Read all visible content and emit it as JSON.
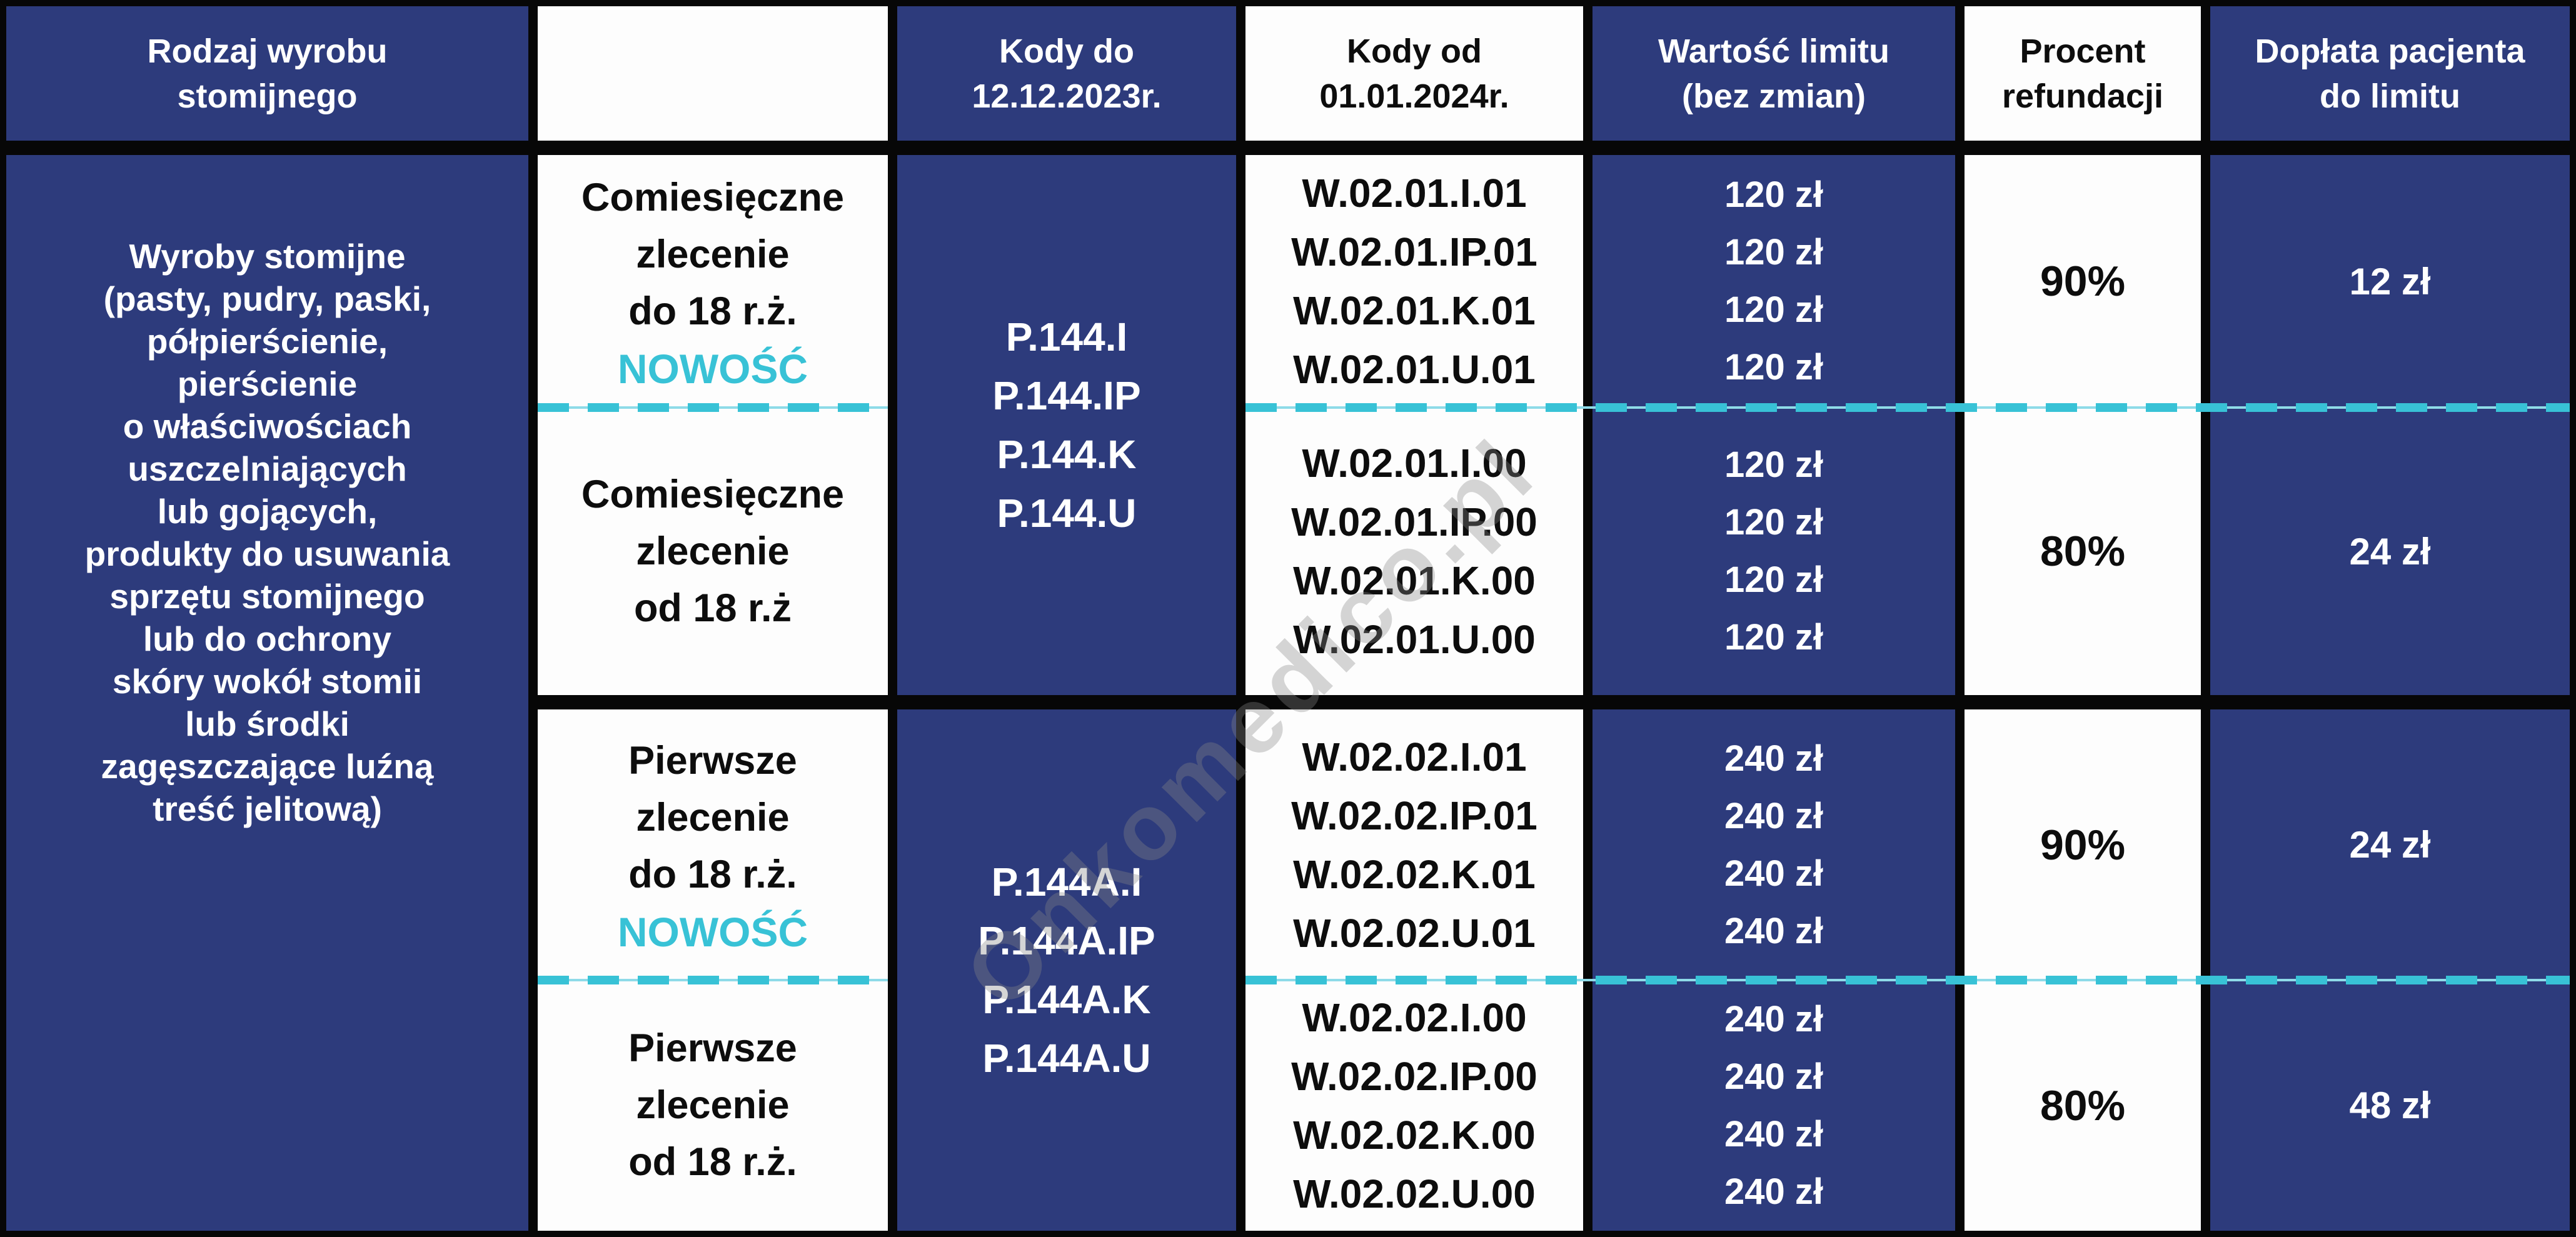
{
  "colors": {
    "navy": "#2d3b7c",
    "accent_cyan": "#38c2d6",
    "border_black": "#070707",
    "cell_white": "#fdfdfd"
  },
  "header": {
    "product_type": "Rodzaj wyrobu\nstomijnego",
    "order_type": "",
    "codes_until": "Kody do\n12.12.2023r.",
    "codes_from": "Kody od\n01.01.2024r.",
    "limit_value": "Wartość limitu\n(bez zmian)",
    "refund_percent": "Procent\nrefundacji",
    "patient_copay": "Dopłata pacjenta\ndo limitu"
  },
  "product_category": "Wyroby stomijne\n(pasty, pudry, paski,\npółpierścienie,\npierścienie\no właściwościach\nuszczelniających\nlub gojących,\nprodukty do usuwania\nsprzętu stomijnego\nlub do ochrony\nskóry wokół stomii\nlub środki\nzagęszczające luźną\ntreść jelitową)",
  "old_codes": {
    "monthly": "P.144.I\nP.144.IP\nP.144.K\nP.144.U",
    "first": "P.144A.I\nP.144A.IP\nP.144A.K\nP.144A.U"
  },
  "rows": [
    {
      "order_type": "Comiesięczne\nzlecenie\ndo 18 r.ż.",
      "new_badge": "NOWOŚĆ",
      "new_codes": "W.02.01.I.01\nW.02.01.IP.01\nW.02.01.K.01\nW.02.01.U.01",
      "limit_values": "120 zł\n120 zł\n120 zł\n120 zł",
      "refund_percent": "90%",
      "patient_copay": "12 zł"
    },
    {
      "order_type": "Comiesięczne\nzlecenie\nod 18 r.ż",
      "new_badge": "",
      "new_codes": "W.02.01.I.00\nW.02.01.IP.00\nW.02.01.K.00\nW.02.01.U.00",
      "limit_values": "120 zł\n120 zł\n120 zł\n120 zł",
      "refund_percent": "80%",
      "patient_copay": "24 zł"
    },
    {
      "order_type": "Pierwsze\nzlecenie\ndo 18 r.ż.",
      "new_badge": "NOWOŚĆ",
      "new_codes": "W.02.02.I.01\nW.02.02.IP.01\nW.02.02.K.01\nW.02.02.U.01",
      "limit_values": "240 zł\n240 zł\n240 zł\n240 zł",
      "refund_percent": "90%",
      "patient_copay": "24 zł"
    },
    {
      "order_type": "Pierwsze\nzlecenie\nod 18 r.ż.",
      "new_badge": "",
      "new_codes": "W.02.02.I.00\nW.02.02.IP.00\nW.02.02.K.00\nW.02.02.U.00",
      "limit_values": "240 zł\n240 zł\n240 zł\n240 zł",
      "refund_percent": "80%",
      "patient_copay": "48 zł"
    }
  ],
  "watermark": "Onkomedico.pl"
}
